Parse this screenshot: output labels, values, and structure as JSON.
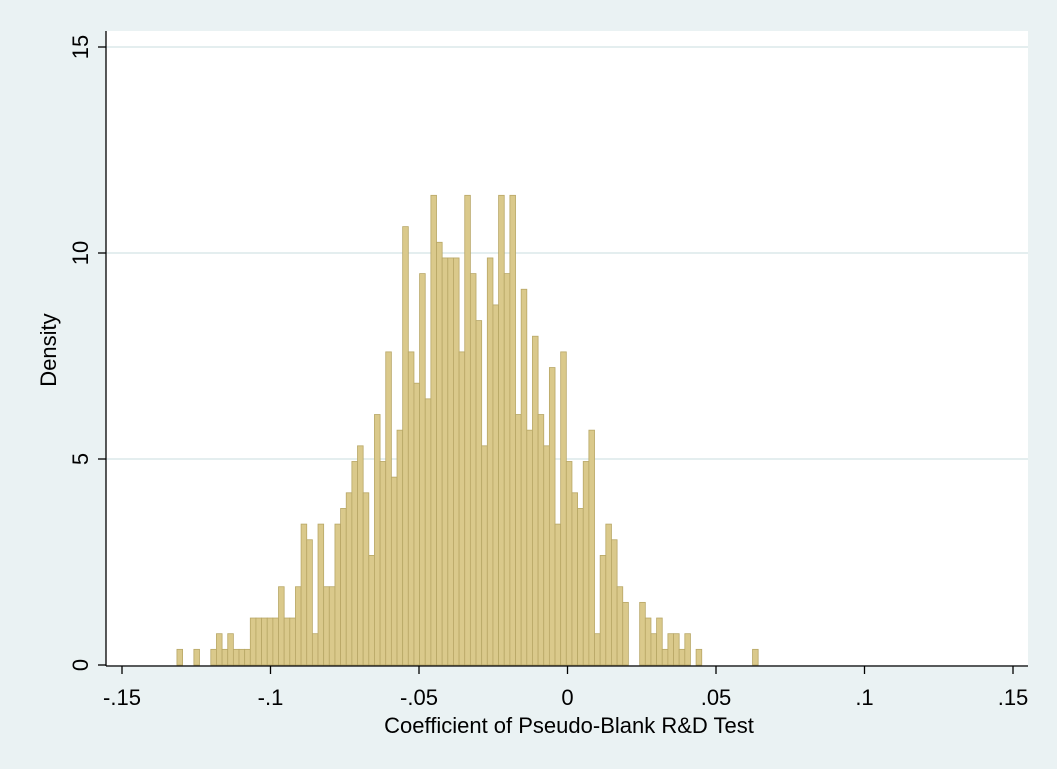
{
  "chart_data": {
    "type": "bar",
    "title": "",
    "xlabel": "Coefficient of Pseudo-Blank R&D Test",
    "ylabel": "Density",
    "xlim": [
      -0.15,
      0.15
    ],
    "ylim": [
      0,
      15
    ],
    "x_ticks": [
      {
        "value": -0.15,
        "label": "-.15"
      },
      {
        "value": -0.1,
        "label": "-.1"
      },
      {
        "value": -0.05,
        "label": "-.05"
      },
      {
        "value": 0,
        "label": "0"
      },
      {
        "value": 0.05,
        "label": ".05"
      },
      {
        "value": 0.1,
        "label": ".1"
      },
      {
        "value": 0.15,
        "label": ".15"
      }
    ],
    "y_ticks": [
      {
        "value": 0,
        "label": "0"
      },
      {
        "value": 5,
        "label": "5"
      },
      {
        "value": 10,
        "label": "10"
      },
      {
        "value": 15,
        "label": "15"
      }
    ],
    "grid": true,
    "legend": "none",
    "colors": {
      "bar_fill": "#dac98b",
      "bar_stroke": "#b8a766",
      "grid": "#dce8ea",
      "plot_bg": "#ffffff",
      "outer_bg": "#eaf2f3"
    },
    "bins": {
      "start": -0.1315,
      "width": 0.0019,
      "values": [
        0.38,
        0,
        0,
        0.38,
        0,
        0,
        0.38,
        0.76,
        0.38,
        0.76,
        0.38,
        0.38,
        0.38,
        1.14,
        1.14,
        1.14,
        1.14,
        1.14,
        1.9,
        1.14,
        1.14,
        1.9,
        3.42,
        3.04,
        0.76,
        3.42,
        1.9,
        1.9,
        3.42,
        3.8,
        4.18,
        4.94,
        5.32,
        4.18,
        2.66,
        6.08,
        4.94,
        7.6,
        4.56,
        5.7,
        10.64,
        7.6,
        6.84,
        9.5,
        6.46,
        11.4,
        10.26,
        9.88,
        9.88,
        9.88,
        7.6,
        11.4,
        9.5,
        8.36,
        5.32,
        9.88,
        8.74,
        11.4,
        9.5,
        11.4,
        6.08,
        9.12,
        5.7,
        7.98,
        6.08,
        5.32,
        7.22,
        3.42,
        7.6,
        4.94,
        4.18,
        3.8,
        4.94,
        5.7,
        0.76,
        2.66,
        3.42,
        3.04,
        1.9,
        1.52,
        0,
        0,
        1.52,
        1.14,
        0.76,
        1.14,
        0.38,
        0.76,
        0.76,
        0.38,
        0.76,
        0,
        0.38,
        0,
        0,
        0,
        0,
        0,
        0,
        0,
        0,
        0,
        0.38
      ]
    }
  }
}
